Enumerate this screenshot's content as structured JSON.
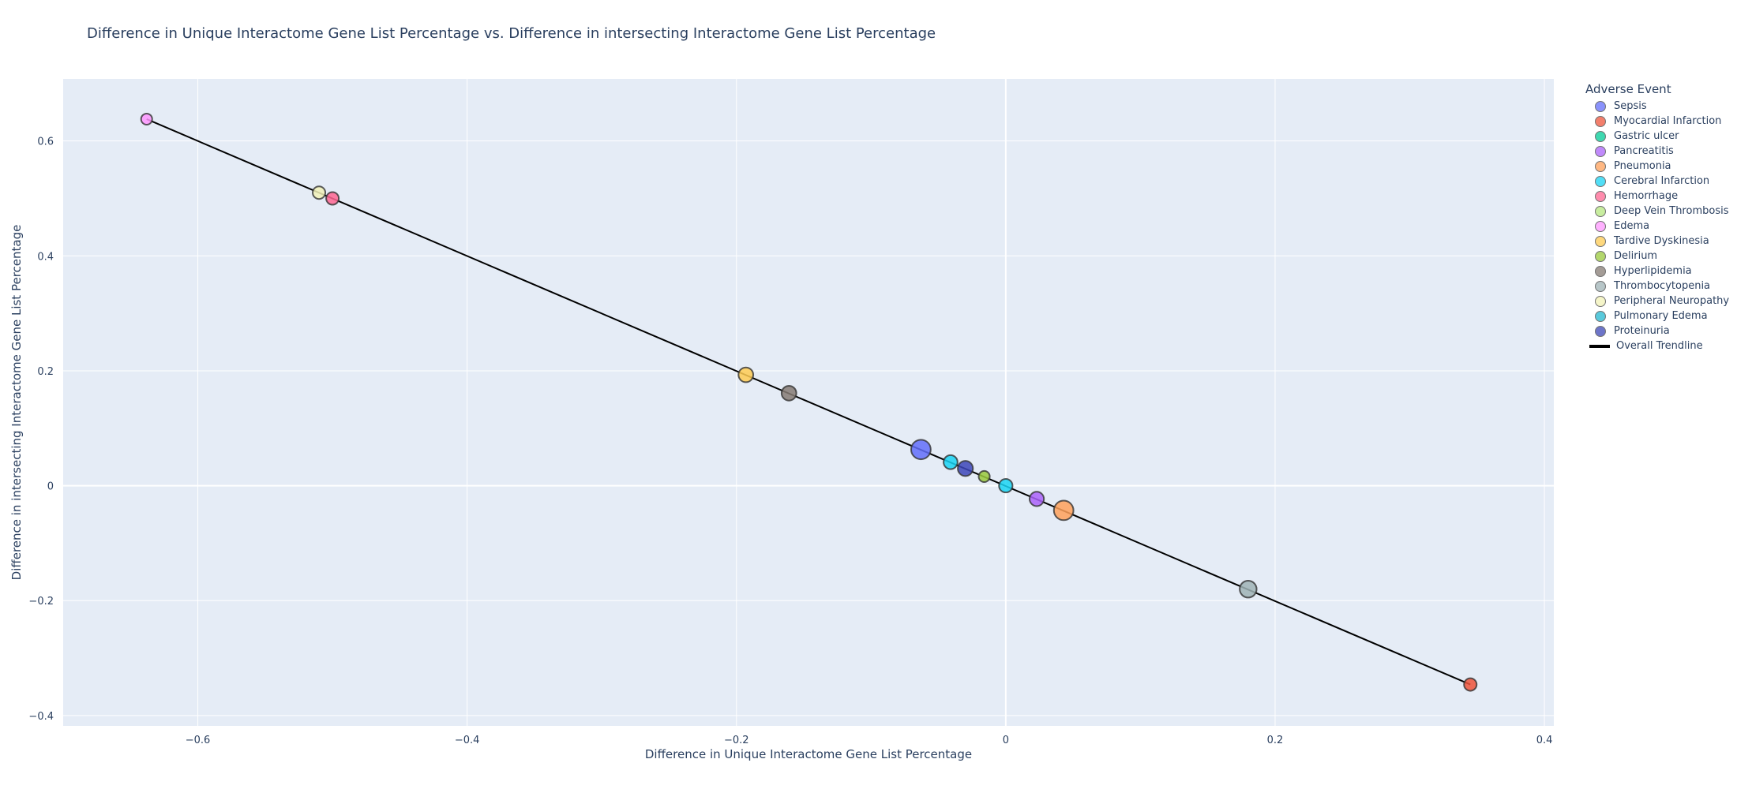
{
  "chart_data": {
    "type": "scatter",
    "title": "Difference in Unique Interactome Gene List Percentage vs. Difference in intersecting Interactome Gene List Percentage",
    "xlabel": "Difference in Unique Interactome Gene List Percentage",
    "ylabel": "Difference in intersecting Interactome Gene List Percentage",
    "xlim": [
      -0.7,
      0.407
    ],
    "ylim": [
      -0.418,
      0.708
    ],
    "x_ticks": [
      -0.6,
      -0.4,
      -0.2,
      0,
      0.2,
      0.4
    ],
    "x_tick_labels": [
      "−0.6",
      "−0.4",
      "−0.2",
      "0",
      "0.2",
      "0.4"
    ],
    "y_ticks": [
      -0.4,
      -0.2,
      0,
      0.2,
      0.4,
      0.6
    ],
    "y_tick_labels": [
      "−0.4",
      "−0.2",
      "0",
      "0.2",
      "0.4",
      "0.6"
    ],
    "grid": true,
    "legend_title": "Adverse Event",
    "legend_position": "right",
    "series": [
      {
        "name": "Sepsis",
        "color": "#636efa",
        "points": [
          {
            "x": -0.063,
            "y": 0.063,
            "size": 3
          }
        ]
      },
      {
        "name": "Myocardial Infarction",
        "color": "#ef553b",
        "points": [
          {
            "x": 0.345,
            "y": -0.346,
            "size": 1
          }
        ]
      },
      {
        "name": "Gastric ulcer",
        "color": "#00cc96",
        "points": []
      },
      {
        "name": "Pancreatitis",
        "color": "#ab63fa",
        "points": [
          {
            "x": 0.023,
            "y": -0.023,
            "size": 1.4
          }
        ]
      },
      {
        "name": "Pneumonia",
        "color": "#ffa15a",
        "points": [
          {
            "x": 0.043,
            "y": -0.043,
            "size": 3
          }
        ]
      },
      {
        "name": "Cerebral Infarction",
        "color": "#19d3f3",
        "points": [
          {
            "x": -0.041,
            "y": 0.041,
            "size": 1.3
          },
          {
            "x": 0.0,
            "y": 0.0,
            "size": 1.2
          }
        ]
      },
      {
        "name": "Hemorrhage",
        "color": "#ff6692",
        "points": [
          {
            "x": -0.5,
            "y": 0.5,
            "size": 1
          }
        ]
      },
      {
        "name": "Deep Vein Thrombosis",
        "color": "#b6e880",
        "points": []
      },
      {
        "name": "Edema",
        "color": "#ff97ff",
        "points": [
          {
            "x": -0.638,
            "y": 0.638,
            "size": 0.7
          }
        ]
      },
      {
        "name": "Tardive Dyskinesia",
        "color": "#fecb52",
        "points": [
          {
            "x": -0.193,
            "y": 0.193,
            "size": 1.5
          }
        ]
      },
      {
        "name": "Delirium",
        "color": "#9aca3c",
        "points": [
          {
            "x": -0.016,
            "y": 0.016,
            "size": 0.7
          }
        ]
      },
      {
        "name": "Hyperlipidemia",
        "color": "#867b74",
        "points": [
          {
            "x": -0.161,
            "y": 0.161,
            "size": 1.5
          }
        ]
      },
      {
        "name": "Thrombocytopenia",
        "color": "#a0b4b6",
        "points": [
          {
            "x": 0.18,
            "y": -0.18,
            "size": 2.1
          }
        ]
      },
      {
        "name": "Peripheral Neuropathy",
        "color": "#f2f2b8",
        "points": [
          {
            "x": -0.51,
            "y": 0.51,
            "size": 1
          }
        ]
      },
      {
        "name": "Pulmonary Edema",
        "color": "#22b8cf",
        "points": []
      },
      {
        "name": "Proteinuria",
        "color": "#3d47b8",
        "points": [
          {
            "x": -0.03,
            "y": 0.03,
            "size": 1.6
          }
        ]
      }
    ],
    "trendline": {
      "name": "Overall Trendline",
      "color": "#000000",
      "x": [
        -0.638,
        0.345
      ],
      "y": [
        0.638,
        -0.346
      ]
    }
  }
}
